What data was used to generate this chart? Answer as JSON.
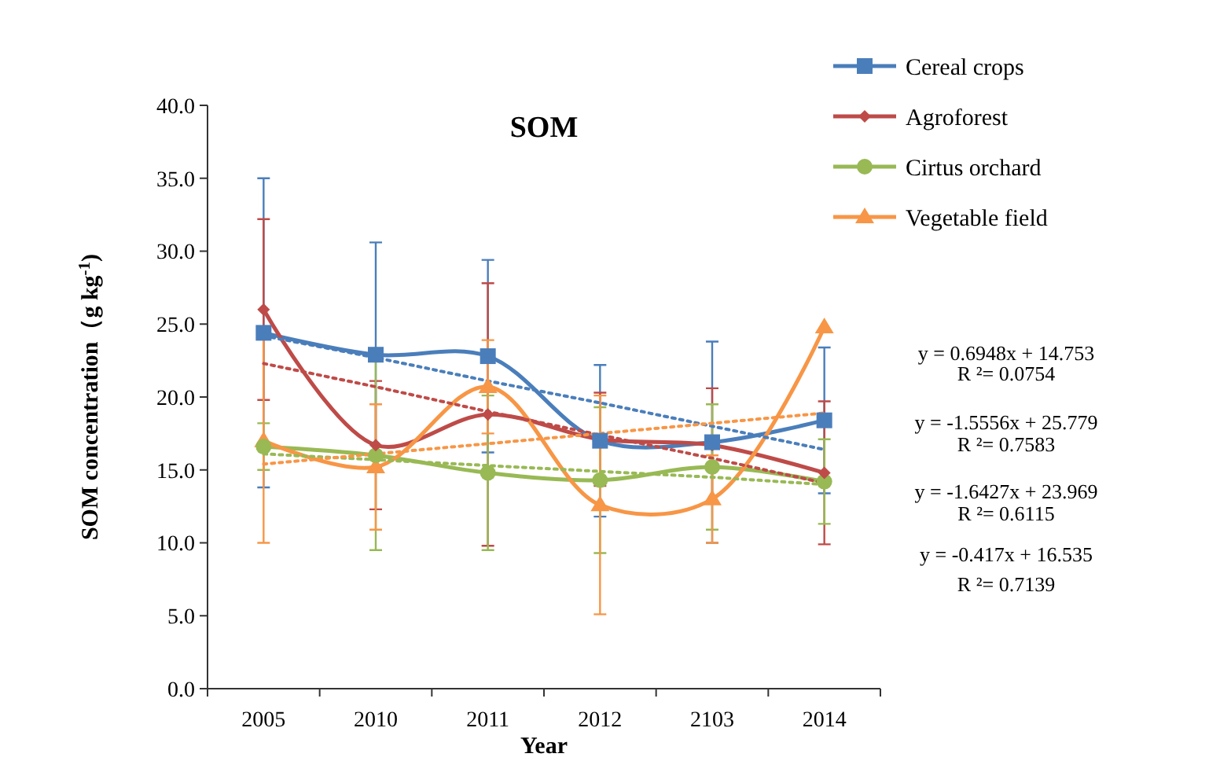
{
  "chart_data": {
    "type": "line",
    "title": "SOM",
    "xlabel": "Year",
    "ylabel": "SOM concentration（g kg$^{-1}$)",
    "categories": [
      "2005",
      "2010",
      "2011",
      "2012",
      "2103",
      "2014"
    ],
    "ylim": [
      0,
      40
    ],
    "yticks": [
      {
        "value": 0,
        "label": "0.0"
      },
      {
        "value": 5,
        "label": "5.0"
      },
      {
        "value": 10,
        "label": "10.0"
      },
      {
        "value": 15,
        "label": "15.0"
      },
      {
        "value": 20,
        "label": "20.0"
      },
      {
        "value": 25,
        "label": "25.0"
      },
      {
        "value": 30,
        "label": "30.0"
      },
      {
        "value": 35,
        "label": "35.0"
      },
      {
        "value": 40,
        "label": "40.0"
      }
    ],
    "grid": false,
    "legend": "top right",
    "line_style": "solid",
    "series": [
      {
        "name": "Cereal crops",
        "color": "#4a7ebb",
        "marker": "square",
        "values": [
          24.4,
          22.9,
          22.8,
          17.0,
          16.9,
          18.4
        ],
        "errors": [
          10.6,
          7.7,
          6.6,
          5.2,
          6.9,
          5.0
        ]
      },
      {
        "name": "Agroforest",
        "color": "#be4b48",
        "marker": "diamond",
        "values": [
          26.0,
          16.7,
          18.8,
          17.1,
          16.7,
          14.8
        ],
        "errors": [
          6.2,
          4.4,
          9.0,
          3.2,
          3.9,
          4.9
        ]
      },
      {
        "name": "Cirtus orchard",
        "color": "#98b954",
        "marker": "circle",
        "values": [
          16.6,
          16.0,
          14.8,
          14.3,
          15.2,
          14.2
        ],
        "errors": [
          1.6,
          6.5,
          5.3,
          5.0,
          4.3,
          2.9
        ]
      },
      {
        "name": "Vegetable field",
        "color": "#f79646",
        "marker": "triangle",
        "values": [
          17.0,
          15.2,
          20.7,
          12.6,
          13.0,
          24.8
        ],
        "errors": [
          7.0,
          4.3,
          3.2,
          7.5,
          3.0,
          null
        ]
      },
      {
        "type": "line",
        "line_style": "dotted",
        "marker": "none",
        "color": "#4a7ebb",
        "values": [
          24.2,
          22.7,
          21.1,
          19.6,
          18.0,
          16.4
        ]
      },
      {
        "type": "line",
        "line_style": "dotted",
        "marker": "none",
        "color": "#be4b48",
        "values": [
          22.3,
          20.7,
          19.0,
          17.4,
          15.8,
          14.1
        ]
      },
      {
        "type": "line",
        "line_style": "dotted",
        "marker": "none",
        "color": "#98b954",
        "values": [
          16.1,
          15.7,
          15.3,
          14.9,
          14.5,
          14.0
        ]
      },
      {
        "type": "line",
        "line_style": "dotted",
        "marker": "none",
        "color": "#f79646",
        "values": [
          15.4,
          16.1,
          16.8,
          17.5,
          18.2,
          18.9
        ]
      }
    ],
    "annotations": [
      "y = 0.6948x + 14.753",
      "R ²= 0.0754",
      "y = -1.5556x + 25.779",
      "R ²= 0.7583",
      "y = -1.6427x + 23.969",
      "R ²= 0.6115",
      "y = -0.417x + 16.535",
      "R ²= 0.7139"
    ]
  }
}
